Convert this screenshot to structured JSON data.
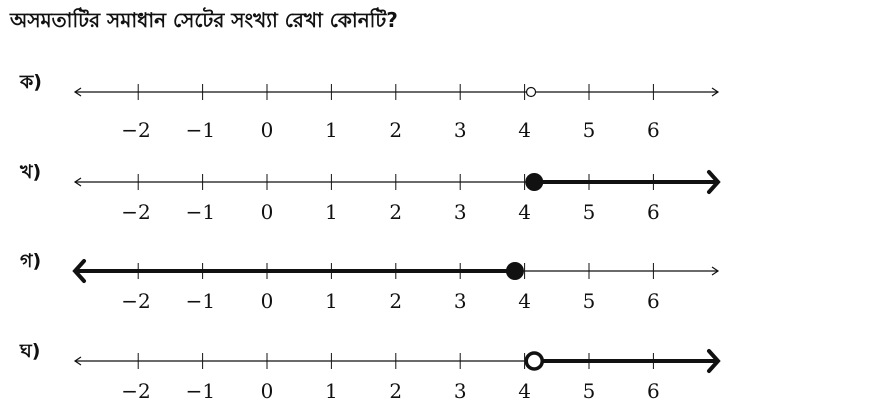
{
  "question": "অসমতাটির সমাধান সেটের সংখ্যা রেখা কোনটি?",
  "ticks": [
    "−2",
    "−1",
    "0",
    "1",
    "2",
    "3",
    "4",
    "5",
    "6"
  ],
  "tick_values": [
    -2,
    -1,
    0,
    1,
    2,
    3,
    4,
    5,
    6
  ],
  "axis_range": [
    -3,
    6.9
  ],
  "ink_color": "#111111",
  "options": [
    {
      "label": "ক)",
      "point": 4.1,
      "point_style": "open",
      "ray": "none"
    },
    {
      "label": "খ)",
      "point": 4.15,
      "point_style": "closed",
      "ray": "right"
    },
    {
      "label": "গ)",
      "point": 3.85,
      "point_style": "closed",
      "ray": "left"
    },
    {
      "label": "ঘ)",
      "point": 4.15,
      "point_style": "open",
      "ray": "right"
    }
  ]
}
